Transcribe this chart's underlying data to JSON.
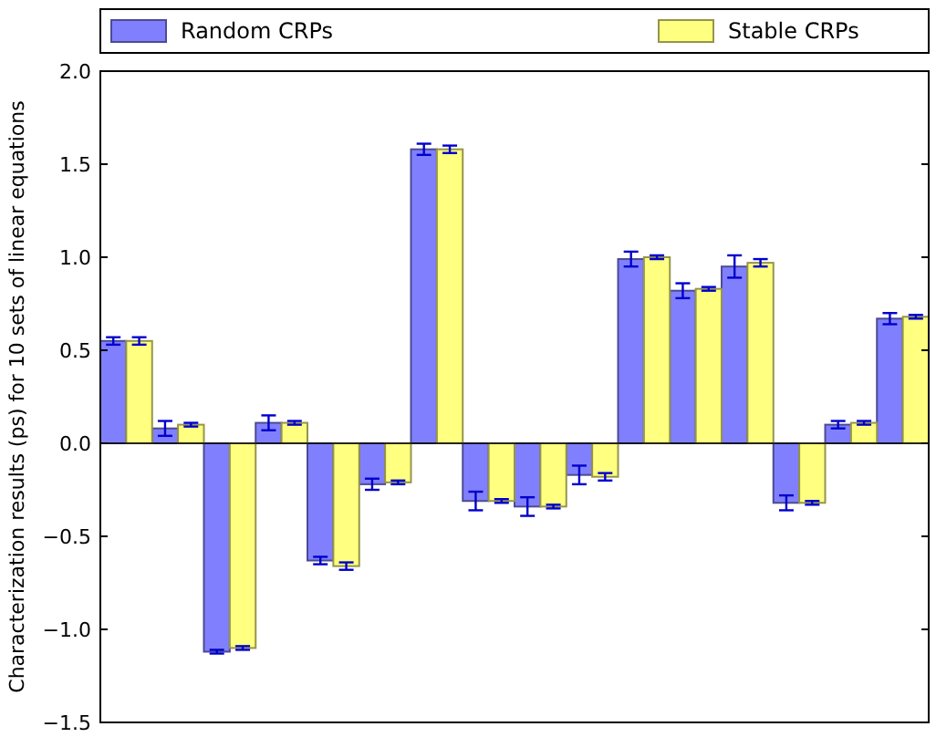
{
  "chart_data": {
    "type": "bar",
    "ylabel": "Characterization results (ps) for 10 sets of linear equations",
    "categories": [
      null,
      null,
      null,
      null,
      null,
      null,
      null,
      null,
      null,
      null,
      null,
      null,
      null,
      null,
      null,
      null
    ],
    "series": [
      {
        "name": "Random CRPs",
        "color": "#8080ff",
        "values": [
          0.55,
          0.08,
          -1.12,
          0.11,
          -0.63,
          -0.22,
          1.58,
          -0.31,
          -0.34,
          -0.17,
          0.99,
          0.82,
          0.95,
          -0.32,
          0.1,
          0.67
        ],
        "errors": [
          0.02,
          0.04,
          0.01,
          0.04,
          0.02,
          0.03,
          0.03,
          0.05,
          0.05,
          0.05,
          0.04,
          0.04,
          0.06,
          0.04,
          0.02,
          0.03
        ]
      },
      {
        "name": "Stable CRPs",
        "color": "#ffff80",
        "values": [
          0.55,
          0.1,
          -1.1,
          0.11,
          -0.66,
          -0.21,
          1.58,
          -0.31,
          -0.34,
          -0.18,
          1.0,
          0.83,
          0.97,
          -0.32,
          0.11,
          0.68
        ],
        "errors": [
          0.02,
          0.01,
          0.01,
          0.01,
          0.02,
          0.01,
          0.02,
          0.01,
          0.01,
          0.02,
          0.01,
          0.01,
          0.02,
          0.01,
          0.01,
          0.01
        ]
      }
    ],
    "ylim": [
      -1.5,
      2.0
    ],
    "yticks": [
      {
        "value": -1.5,
        "label": "−1.5"
      },
      {
        "value": -1.0,
        "label": "−1.0"
      },
      {
        "value": -0.5,
        "label": "−0.5"
      },
      {
        "value": 0,
        "label": "0.0"
      },
      {
        "value": 0.5,
        "label": "0.5"
      },
      {
        "value": 1.0,
        "label": "1.0"
      },
      {
        "value": 1.5,
        "label": "1.5"
      },
      {
        "value": 2.0,
        "label": "2.0"
      }
    ],
    "legend": "top"
  }
}
